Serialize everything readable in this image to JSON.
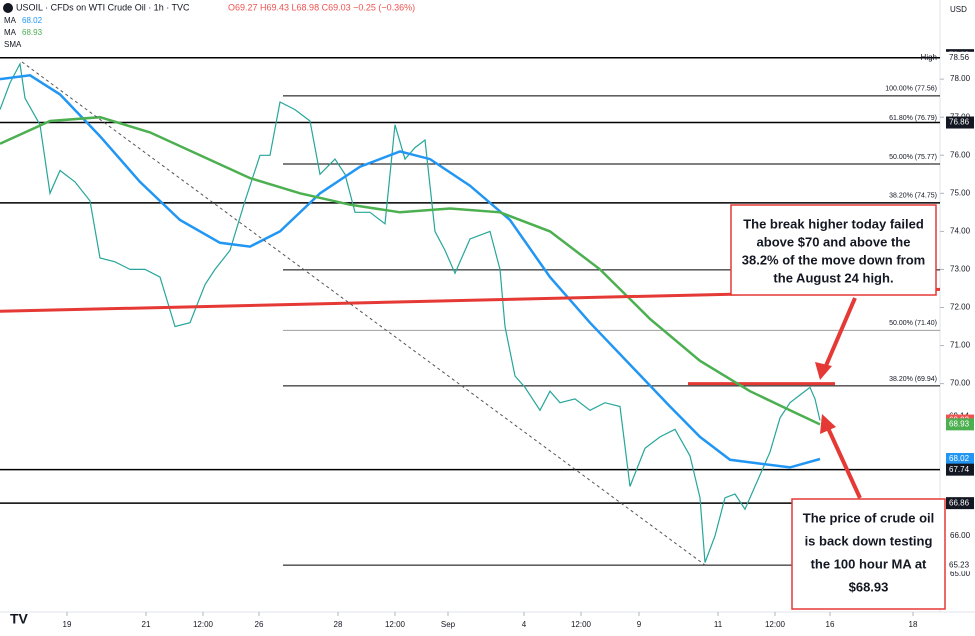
{
  "header": {
    "symbol": "USOIL · CFDs on WTI Crude Oil · 1h · TVC",
    "ohlc": "O69.27 H69.43 L68.98 C69.03 −0.25 (−0.36%)",
    "currency": "USD"
  },
  "indicators": [
    {
      "label": "MA",
      "value": "68.02",
      "color": "#2196f3"
    },
    {
      "label": "MA",
      "value": "68.93",
      "color": "#4caf50"
    },
    {
      "label": "SMA",
      "value": "",
      "color": "#787b86"
    }
  ],
  "chart_data": {
    "type": "line",
    "xlim": [
      0,
      940
    ],
    "ylim": [
      64,
      80
    ],
    "xticks": [
      {
        "value": 67,
        "label": "19"
      },
      {
        "value": 146,
        "label": "21"
      },
      {
        "value": 203,
        "label": "12:00"
      },
      {
        "value": 259,
        "label": "26"
      },
      {
        "value": 338,
        "label": "28"
      },
      {
        "value": 395,
        "label": "12:00"
      },
      {
        "value": 448,
        "label": "Sep"
      },
      {
        "value": 524,
        "label": "4"
      },
      {
        "value": 581,
        "label": "12:00"
      },
      {
        "value": 639,
        "label": "9"
      },
      {
        "value": 718,
        "label": "11"
      },
      {
        "value": 775,
        "label": "12:00"
      },
      {
        "value": 830,
        "label": "16"
      },
      {
        "value": 913,
        "label": "18"
      }
    ],
    "yticks": [
      {
        "value": 78,
        "label": "78.00"
      },
      {
        "value": 77,
        "label": "77.00"
      },
      {
        "value": 76,
        "label": "76.00"
      },
      {
        "value": 75,
        "label": "75.00"
      },
      {
        "value": 74,
        "label": "74.00"
      },
      {
        "value": 73,
        "label": "73.00"
      },
      {
        "value": 72,
        "label": "72.00"
      },
      {
        "value": 71,
        "label": "71.00"
      },
      {
        "value": 70,
        "label": "70.00"
      },
      {
        "value": 66,
        "label": "66.00"
      },
      {
        "value": 65,
        "label": "65.00"
      }
    ],
    "series": [
      {
        "name": "USOIL",
        "color": "#26a69a",
        "x": [
          0,
          10,
          20,
          25,
          40,
          50,
          60,
          75,
          90,
          100,
          115,
          130,
          145,
          160,
          175,
          190,
          205,
          215,
          230,
          245,
          260,
          270,
          280,
          295,
          310,
          320,
          335,
          345,
          355,
          370,
          385,
          395,
          405,
          415,
          425,
          435,
          445,
          455,
          470,
          490,
          500,
          505,
          515,
          525,
          540,
          550,
          560,
          575,
          590,
          605,
          620,
          630,
          645,
          660,
          675,
          690,
          700,
          705,
          715,
          725,
          735,
          745,
          755,
          770,
          780,
          790,
          800,
          810,
          815,
          820
        ],
        "values": [
          77.2,
          77.9,
          78.4,
          77.5,
          76.8,
          75.0,
          75.6,
          75.3,
          74.8,
          73.3,
          73.2,
          73.0,
          73.0,
          72.8,
          71.5,
          71.6,
          72.6,
          73.0,
          73.5,
          74.8,
          76.0,
          76.0,
          77.4,
          77.2,
          76.9,
          75.5,
          75.9,
          75.5,
          74.5,
          74.5,
          74.2,
          76.8,
          75.9,
          76.2,
          76.4,
          74.0,
          73.5,
          72.9,
          73.8,
          74.0,
          73.0,
          71.5,
          70.2,
          69.9,
          69.3,
          69.8,
          69.5,
          69.6,
          69.3,
          69.5,
          69.4,
          67.3,
          68.3,
          68.6,
          68.8,
          68.1,
          67.0,
          65.3,
          66.0,
          67.0,
          67.1,
          66.7,
          67.3,
          68.2,
          69.1,
          69.5,
          69.7,
          69.9,
          69.6,
          69.03
        ]
      },
      {
        "name": "MA 68.02",
        "color": "#2196f3",
        "x": [
          0,
          30,
          60,
          100,
          140,
          180,
          220,
          250,
          280,
          320,
          360,
          400,
          430,
          470,
          510,
          550,
          590,
          630,
          670,
          700,
          730,
          760,
          790,
          820
        ],
        "values": [
          78.0,
          78.1,
          77.6,
          76.5,
          75.3,
          74.3,
          73.7,
          73.6,
          74.0,
          75.0,
          75.7,
          76.1,
          75.9,
          75.2,
          74.3,
          72.8,
          71.6,
          70.5,
          69.4,
          68.6,
          68.0,
          67.9,
          67.8,
          68.02
        ]
      },
      {
        "name": "MA 68.93",
        "color": "#4caf50",
        "x": [
          0,
          50,
          100,
          150,
          200,
          250,
          300,
          350,
          400,
          450,
          500,
          550,
          600,
          650,
          700,
          750,
          790,
          820
        ],
        "values": [
          76.3,
          76.9,
          77.0,
          76.6,
          76.0,
          75.4,
          75.0,
          74.7,
          74.5,
          74.6,
          74.5,
          74.0,
          73.0,
          71.7,
          70.6,
          69.8,
          69.3,
          68.93
        ]
      },
      {
        "name": "Trend",
        "color": "#e53935",
        "x": [
          0,
          975
        ],
        "values": [
          71.9,
          72.5
        ]
      }
    ],
    "levels": [
      {
        "value": 78.56,
        "from": 0,
        "to": 940,
        "color": "#000000"
      },
      {
        "value": 76.86,
        "from": 0,
        "to": 940,
        "color": "#000000"
      },
      {
        "value": 74.75,
        "from": 0,
        "to": 940,
        "color": "#000000"
      },
      {
        "value": 67.74,
        "from": 0,
        "to": 940,
        "color": "#000000"
      },
      {
        "value": 66.86,
        "from": 0,
        "to": 940,
        "color": "#000000"
      },
      {
        "value": 77.56,
        "from": 283,
        "to": 940,
        "color": "#000000"
      },
      {
        "value": 75.77,
        "from": 283,
        "to": 940,
        "color": "#000000"
      },
      {
        "value": 72.99,
        "from": 283,
        "to": 940,
        "color": "#000000"
      },
      {
        "value": 71.4,
        "from": 283,
        "to": 940,
        "color": "#9e9e9e"
      },
      {
        "value": 69.94,
        "from": 283,
        "to": 940,
        "color": "#000000"
      },
      {
        "value": 65.23,
        "from": 283,
        "to": 940,
        "color": "#000000"
      },
      {
        "value": 70.0,
        "from": 688,
        "to": 835,
        "color": "#e53935"
      }
    ],
    "fib_labels": [
      {
        "label": "100.00% (77.56)",
        "value": 77.56
      },
      {
        "label": "61.80% (76.79)",
        "value": 76.79
      },
      {
        "label": "50.00% (75.77)",
        "value": 75.77
      },
      {
        "label": "38.20% (74.75)",
        "value": 74.75
      },
      {
        "label": "50.00% (71.40)",
        "value": 71.4
      },
      {
        "label": "38.20% (69.94)",
        "value": 69.94
      }
    ],
    "price_badges": [
      {
        "value": 78.63,
        "label": "78.63",
        "bg": "#131722",
        "fg": "#ffffff"
      },
      {
        "value": 78.56,
        "label": "78.56",
        "bg": "#ffffff",
        "fg": "#131722"
      },
      {
        "value": 76.86,
        "label": "76.86",
        "bg": "#131722",
        "fg": "#ffffff"
      },
      {
        "value": 69.14,
        "label": "69.14",
        "bg": "#ffffff",
        "fg": "#131722"
      },
      {
        "value": 69.03,
        "label": "69.03",
        "bg": "#ef5350",
        "fg": "#ffffff"
      },
      {
        "value": 68.93,
        "label": "68.93",
        "bg": "#4caf50",
        "fg": "#ffffff"
      },
      {
        "value": 68.02,
        "label": "68.02",
        "bg": "#2196f3",
        "fg": "#ffffff"
      },
      {
        "value": 67.74,
        "label": "67.74",
        "bg": "#131722",
        "fg": "#ffffff"
      },
      {
        "value": 66.86,
        "label": "66.86",
        "bg": "#131722",
        "fg": "#ffffff"
      },
      {
        "value": 65.23,
        "label": "65.23",
        "bg": "#ffffff",
        "fg": "#131722"
      }
    ],
    "high_label": "High",
    "annotations": [
      {
        "lines": [
          "The break higher today failed",
          "above $70 and above the",
          "38.2% of the move down from",
          "the August 24 high."
        ]
      },
      {
        "lines": [
          "The price of crude oil",
          "is back down testing",
          "the 100 hour MA at",
          "$68.93"
        ]
      }
    ]
  }
}
